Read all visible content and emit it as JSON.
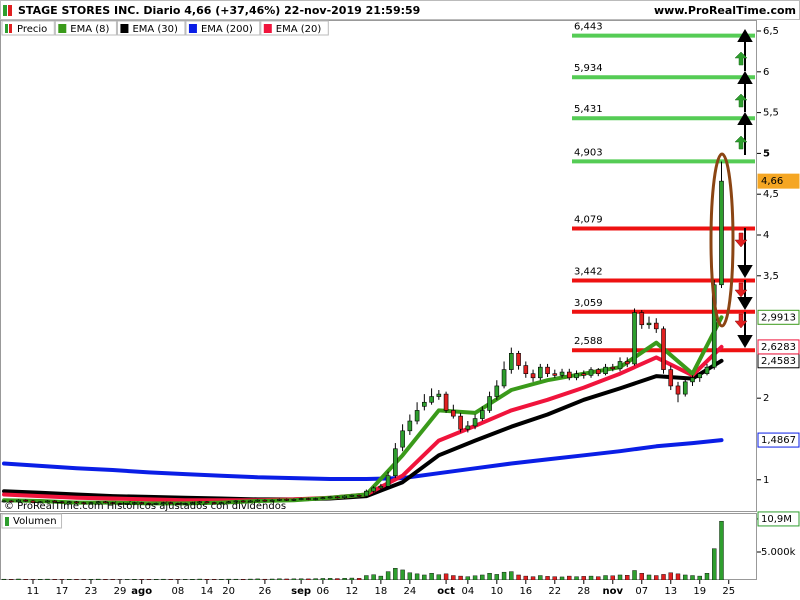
{
  "chart_data": {
    "type": "candlestick",
    "title": "STAGE STORES INC. Diario 4,66 (+37,46%) 22-nov-2019 21:59:59",
    "source": "www.ProRealTime.com",
    "watermark": "© ProRealTime.com Históricos ajustados con dividendos",
    "xlim": [
      -0.55,
      103.9
    ],
    "ylim": [
      0.605,
      6.635
    ],
    "xticks": [
      {
        "value": 4,
        "label": "11"
      },
      {
        "value": 8,
        "label": "17"
      },
      {
        "value": 12,
        "label": "23"
      },
      {
        "value": 16,
        "label": "29"
      },
      {
        "value": 19,
        "label": "ago"
      },
      {
        "value": 24,
        "label": "08"
      },
      {
        "value": 28,
        "label": "14"
      },
      {
        "value": 31,
        "label": "20"
      },
      {
        "value": 36,
        "label": "26"
      },
      {
        "value": 41,
        "label": "sep"
      },
      {
        "value": 44,
        "label": "06"
      },
      {
        "value": 48,
        "label": "12"
      },
      {
        "value": 52,
        "label": "18"
      },
      {
        "value": 56,
        "label": "24"
      },
      {
        "value": 61,
        "label": "oct"
      },
      {
        "value": 64,
        "label": "04"
      },
      {
        "value": 68,
        "label": "10"
      },
      {
        "value": 72,
        "label": "16"
      },
      {
        "value": 76,
        "label": "22"
      },
      {
        "value": 80,
        "label": "28"
      },
      {
        "value": 84,
        "label": "nov"
      },
      {
        "value": 88,
        "label": "07"
      },
      {
        "value": 92,
        "label": "13"
      },
      {
        "value": 96,
        "label": "19"
      },
      {
        "value": 100,
        "label": "25"
      }
    ],
    "yticks": [
      {
        "value": 6.5,
        "label": "6,5"
      },
      6,
      {
        "value": 5.5,
        "label": "5,5"
      },
      5,
      {
        "value": 4.5,
        "label": "4,5"
      },
      4,
      {
        "value": 3.5,
        "label": "3,5"
      },
      2,
      1
    ],
    "candles": {
      "name": "Precio",
      "color_up": "#2e9e2e",
      "color_down": "#e02020",
      "last_label": "4,66",
      "tag_color": "#f5a623",
      "open": [
        0.73,
        0.74,
        0.73,
        0.75,
        0.74,
        0.72,
        0.73,
        0.74,
        0.73,
        0.72,
        0.73,
        0.72,
        0.71,
        0.72,
        0.73,
        0.72,
        0.71,
        0.7,
        0.71,
        0.72,
        0.71,
        0.7,
        0.71,
        0.72,
        0.71,
        0.7,
        0.71,
        0.72,
        0.73,
        0.72,
        0.71,
        0.72,
        0.73,
        0.74,
        0.73,
        0.74,
        0.75,
        0.74,
        0.75,
        0.76,
        0.75,
        0.76,
        0.77,
        0.76,
        0.77,
        0.78,
        0.79,
        0.78,
        0.8,
        0.81,
        0.8,
        0.86,
        0.9,
        0.92,
        1.05,
        1.4,
        1.6,
        1.72,
        1.9,
        1.95,
        2.02,
        2.05,
        1.85,
        1.78,
        1.62,
        1.66,
        1.75,
        1.85,
        2.02,
        2.15,
        2.35,
        2.55,
        2.4,
        2.3,
        2.25,
        2.38,
        2.3,
        2.28,
        2.32,
        2.25,
        2.3,
        2.28,
        2.35,
        2.3,
        2.38,
        2.36,
        2.45,
        2.42,
        3.05,
        2.9,
        2.92,
        2.85,
        2.35,
        2.15,
        2.05,
        2.2,
        2.25,
        2.3,
        2.38,
        3.39
      ],
      "high": [
        0.75,
        0.75,
        0.76,
        0.76,
        0.75,
        0.74,
        0.75,
        0.75,
        0.74,
        0.74,
        0.74,
        0.73,
        0.73,
        0.74,
        0.74,
        0.73,
        0.72,
        0.72,
        0.73,
        0.73,
        0.72,
        0.72,
        0.73,
        0.73,
        0.72,
        0.72,
        0.73,
        0.74,
        0.74,
        0.73,
        0.73,
        0.74,
        0.75,
        0.75,
        0.75,
        0.76,
        0.76,
        0.76,
        0.77,
        0.77,
        0.77,
        0.78,
        0.78,
        0.78,
        0.79,
        0.8,
        0.8,
        0.81,
        0.82,
        0.82,
        0.88,
        0.92,
        0.95,
        1.1,
        1.45,
        1.68,
        1.8,
        1.95,
        2.05,
        2.12,
        2.1,
        2.08,
        1.92,
        1.82,
        1.72,
        1.8,
        1.9,
        2.08,
        2.22,
        2.45,
        2.62,
        2.58,
        2.45,
        2.35,
        2.42,
        2.42,
        2.35,
        2.36,
        2.36,
        2.34,
        2.34,
        2.38,
        2.37,
        2.42,
        2.42,
        2.5,
        2.5,
        3.1,
        3.08,
        3.0,
        2.98,
        2.88,
        2.4,
        2.2,
        2.25,
        2.28,
        2.32,
        2.42,
        3.45,
        4.9
      ],
      "low": [
        0.72,
        0.72,
        0.72,
        0.73,
        0.71,
        0.71,
        0.72,
        0.72,
        0.71,
        0.71,
        0.71,
        0.7,
        0.7,
        0.71,
        0.71,
        0.7,
        0.69,
        0.69,
        0.7,
        0.7,
        0.69,
        0.69,
        0.7,
        0.7,
        0.69,
        0.69,
        0.7,
        0.71,
        0.71,
        0.7,
        0.7,
        0.71,
        0.72,
        0.72,
        0.72,
        0.73,
        0.73,
        0.73,
        0.74,
        0.74,
        0.74,
        0.75,
        0.75,
        0.75,
        0.76,
        0.77,
        0.77,
        0.77,
        0.79,
        0.79,
        0.79,
        0.84,
        0.88,
        0.9,
        1.02,
        1.35,
        1.55,
        1.68,
        1.85,
        1.92,
        1.98,
        1.82,
        1.75,
        1.58,
        1.58,
        1.62,
        1.72,
        1.82,
        1.98,
        2.12,
        2.3,
        2.35,
        2.25,
        2.2,
        2.22,
        2.26,
        2.25,
        2.25,
        2.22,
        2.22,
        2.24,
        2.25,
        2.27,
        2.28,
        2.33,
        2.33,
        2.38,
        2.4,
        2.85,
        2.85,
        2.8,
        2.3,
        2.1,
        1.95,
        2.02,
        2.15,
        2.2,
        2.28,
        2.35,
        3.35
      ],
      "close": [
        0.74,
        0.73,
        0.75,
        0.74,
        0.72,
        0.73,
        0.74,
        0.73,
        0.72,
        0.73,
        0.72,
        0.71,
        0.72,
        0.73,
        0.72,
        0.71,
        0.7,
        0.71,
        0.72,
        0.71,
        0.7,
        0.71,
        0.72,
        0.71,
        0.7,
        0.71,
        0.72,
        0.73,
        0.72,
        0.71,
        0.72,
        0.73,
        0.74,
        0.73,
        0.74,
        0.75,
        0.74,
        0.75,
        0.76,
        0.75,
        0.76,
        0.77,
        0.76,
        0.77,
        0.78,
        0.79,
        0.78,
        0.8,
        0.81,
        0.8,
        0.86,
        0.9,
        0.92,
        1.05,
        1.38,
        1.6,
        1.72,
        1.85,
        1.95,
        2.02,
        2.05,
        1.85,
        1.78,
        1.62,
        1.66,
        1.75,
        1.85,
        2.02,
        2.15,
        2.35,
        2.55,
        2.4,
        2.3,
        2.25,
        2.38,
        2.3,
        2.28,
        2.32,
        2.25,
        2.3,
        2.28,
        2.35,
        2.3,
        2.38,
        2.36,
        2.45,
        2.42,
        3.05,
        2.9,
        2.92,
        2.85,
        2.35,
        2.15,
        2.05,
        2.2,
        2.25,
        2.3,
        2.38,
        3.39,
        4.66
      ]
    },
    "series": [
      {
        "name": "EMA (8)",
        "color": "#3a9a1a",
        "last_label": "2,9913",
        "x": [
          0,
          5,
          10,
          15,
          20,
          25,
          30,
          35,
          40,
          45,
          50,
          55,
          60,
          65,
          70,
          75,
          80,
          85,
          90,
          95,
          99
        ],
        "values": [
          0.75,
          0.74,
          0.72,
          0.72,
          0.71,
          0.71,
          0.72,
          0.74,
          0.75,
          0.78,
          0.82,
          1.3,
          1.85,
          1.82,
          2.1,
          2.22,
          2.3,
          2.38,
          2.68,
          2.3,
          2.9913
        ]
      },
      {
        "name": "EMA (30)",
        "color": "#000000",
        "last_label": "2,4583",
        "x": [
          0,
          5,
          10,
          15,
          20,
          25,
          30,
          35,
          40,
          45,
          50,
          55,
          60,
          65,
          70,
          75,
          80,
          85,
          90,
          95,
          99
        ],
        "values": [
          0.86,
          0.84,
          0.82,
          0.8,
          0.79,
          0.78,
          0.77,
          0.76,
          0.76,
          0.77,
          0.8,
          0.97,
          1.3,
          1.48,
          1.65,
          1.8,
          1.98,
          2.12,
          2.27,
          2.24,
          2.4583
        ]
      },
      {
        "name": "EMA (200)",
        "color": "#0a1ee6",
        "last_label": "1,4867",
        "x": [
          0,
          5,
          10,
          15,
          20,
          25,
          30,
          35,
          40,
          45,
          50,
          55,
          60,
          65,
          70,
          75,
          80,
          85,
          90,
          95,
          99
        ],
        "values": [
          1.2,
          1.17,
          1.14,
          1.12,
          1.09,
          1.07,
          1.05,
          1.03,
          1.02,
          1.01,
          1.01,
          1.02,
          1.08,
          1.14,
          1.2,
          1.25,
          1.3,
          1.35,
          1.41,
          1.45,
          1.4867
        ]
      },
      {
        "name": "EMA (20)",
        "color": "#f0143c",
        "last_label": "2,6283",
        "x": [
          0,
          5,
          10,
          15,
          20,
          25,
          30,
          35,
          40,
          45,
          50,
          55,
          60,
          65,
          70,
          75,
          80,
          85,
          90,
          95,
          99
        ],
        "values": [
          0.82,
          0.8,
          0.78,
          0.77,
          0.76,
          0.75,
          0.75,
          0.75,
          0.76,
          0.78,
          0.82,
          1.05,
          1.48,
          1.66,
          1.85,
          1.98,
          2.13,
          2.3,
          2.5,
          2.28,
          2.6283
        ]
      }
    ],
    "levels": [
      {
        "value": 6.443,
        "label": "6,443",
        "color": "#55cc55"
      },
      {
        "value": 5.934,
        "label": "5,934",
        "color": "#55cc55"
      },
      {
        "value": 5.431,
        "label": "5,431",
        "color": "#55cc55"
      },
      {
        "value": 4.903,
        "label": "4,903",
        "color": "#55cc55"
      },
      {
        "value": 4.079,
        "label": "4,079",
        "color": "#ee1111"
      },
      {
        "value": 3.442,
        "label": "3,442",
        "color": "#ee1111"
      },
      {
        "value": 3.059,
        "label": "3,059",
        "color": "#ee1111"
      },
      {
        "value": 2.588,
        "label": "2,588",
        "color": "#ee1111"
      }
    ],
    "volume": {
      "name": "Volumen",
      "ylim": [
        0,
        11960
      ],
      "yticks": [
        {
          "value": 10900,
          "label": "10,9M"
        },
        {
          "value": 5000,
          "label": "5.000k"
        }
      ],
      "values": [
        150,
        120,
        180,
        130,
        100,
        140,
        160,
        120,
        110,
        130,
        120,
        100,
        140,
        160,
        120,
        110,
        90,
        100,
        130,
        120,
        110,
        130,
        150,
        120,
        100,
        110,
        140,
        170,
        130,
        120,
        140,
        160,
        150,
        130,
        170,
        200,
        150,
        180,
        220,
        190,
        210,
        230,
        200,
        250,
        280,
        300,
        260,
        320,
        350,
        300,
        800,
        950,
        700,
        1500,
        2100,
        1800,
        1300,
        1100,
        900,
        1200,
        950,
        1100,
        800,
        700,
        600,
        750,
        900,
        1200,
        1000,
        1400,
        1500,
        900,
        700,
        600,
        800,
        650,
        600,
        550,
        700,
        600,
        650,
        700,
        600,
        800,
        750,
        900,
        850,
        1700,
        1200,
        900,
        800,
        1000,
        1300,
        1100,
        900,
        800,
        700,
        1200,
        5600,
        10500
      ]
    }
  }
}
